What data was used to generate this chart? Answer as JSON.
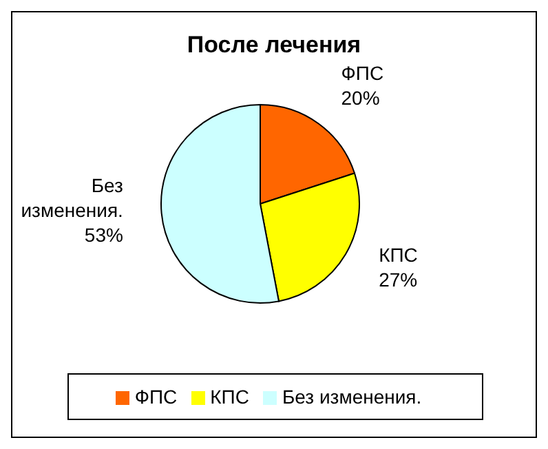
{
  "chart_data": {
    "type": "pie",
    "title": "После лечения",
    "categories": [
      "ФПС",
      "КПС",
      "Без изменения."
    ],
    "values": [
      20,
      27,
      53
    ],
    "value_labels": [
      "20%",
      "27%",
      "53%"
    ],
    "colors": [
      "#ff6600",
      "#ffff00",
      "#ccffff"
    ],
    "legend": "bottom"
  }
}
